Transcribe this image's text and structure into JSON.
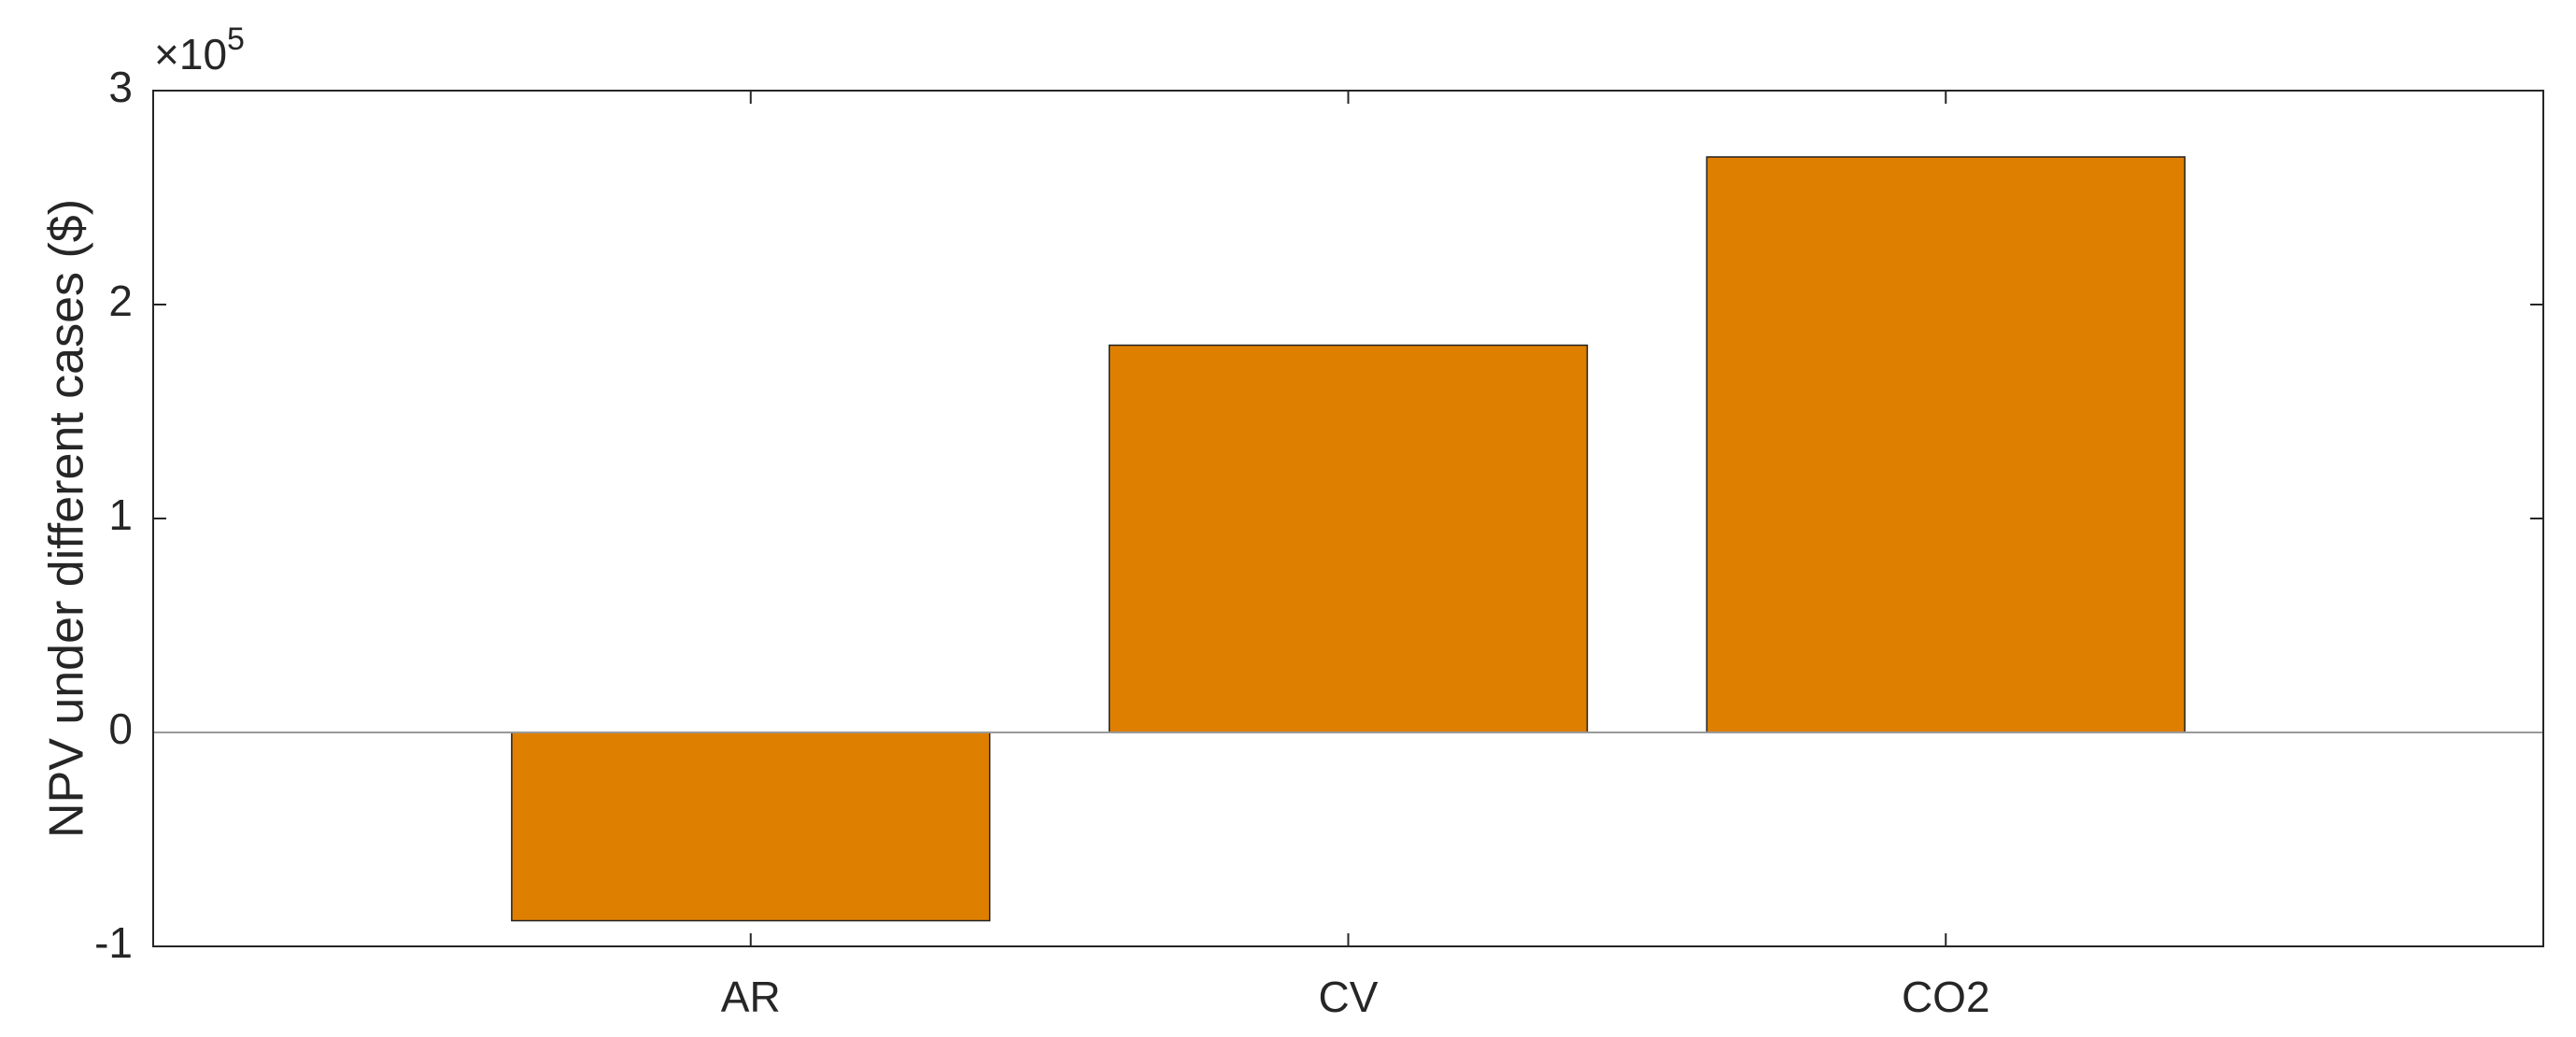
{
  "chart_data": {
    "type": "bar",
    "y_label": "NPV under different cases ($)",
    "y_multiplier": {
      "base": "×10",
      "exponent": "5"
    },
    "categories": [
      "AR",
      "CV",
      "CO2"
    ],
    "values": [
      -0.88,
      1.81,
      2.69
    ],
    "color": "#df7f00",
    "ylim": [
      -1,
      3
    ],
    "yticks": [
      -1,
      0,
      1,
      2,
      3
    ],
    "grid": false
  }
}
